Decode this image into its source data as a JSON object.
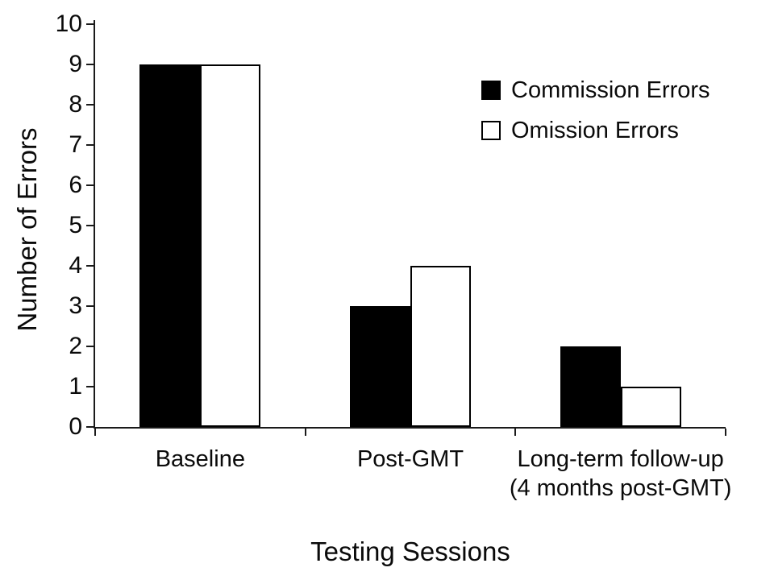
{
  "chart_data": {
    "type": "bar",
    "title": "",
    "categories": [
      "Baseline",
      "Post-GMT",
      "Long-term follow-up\n(4 months post-GMT)"
    ],
    "series": [
      {
        "name": "Commission Errors",
        "color": "#000000",
        "values": [
          9,
          3,
          2
        ]
      },
      {
        "name": "Omission Errors",
        "color": "#ffffff",
        "values": [
          9,
          4,
          1
        ]
      }
    ],
    "xlabel": "Testing Sessions",
    "ylabel": "Number of Errors",
    "ylim": [
      0,
      10
    ],
    "ytick_step": 1,
    "yticks": [
      0,
      1,
      2,
      3,
      4,
      5,
      6,
      7,
      8,
      9,
      10
    ],
    "grid": false,
    "legend_position": "top-right",
    "bar_edge_color": "#000000",
    "axis_color": "#1a1a1a",
    "background_color": "#ffffff"
  }
}
